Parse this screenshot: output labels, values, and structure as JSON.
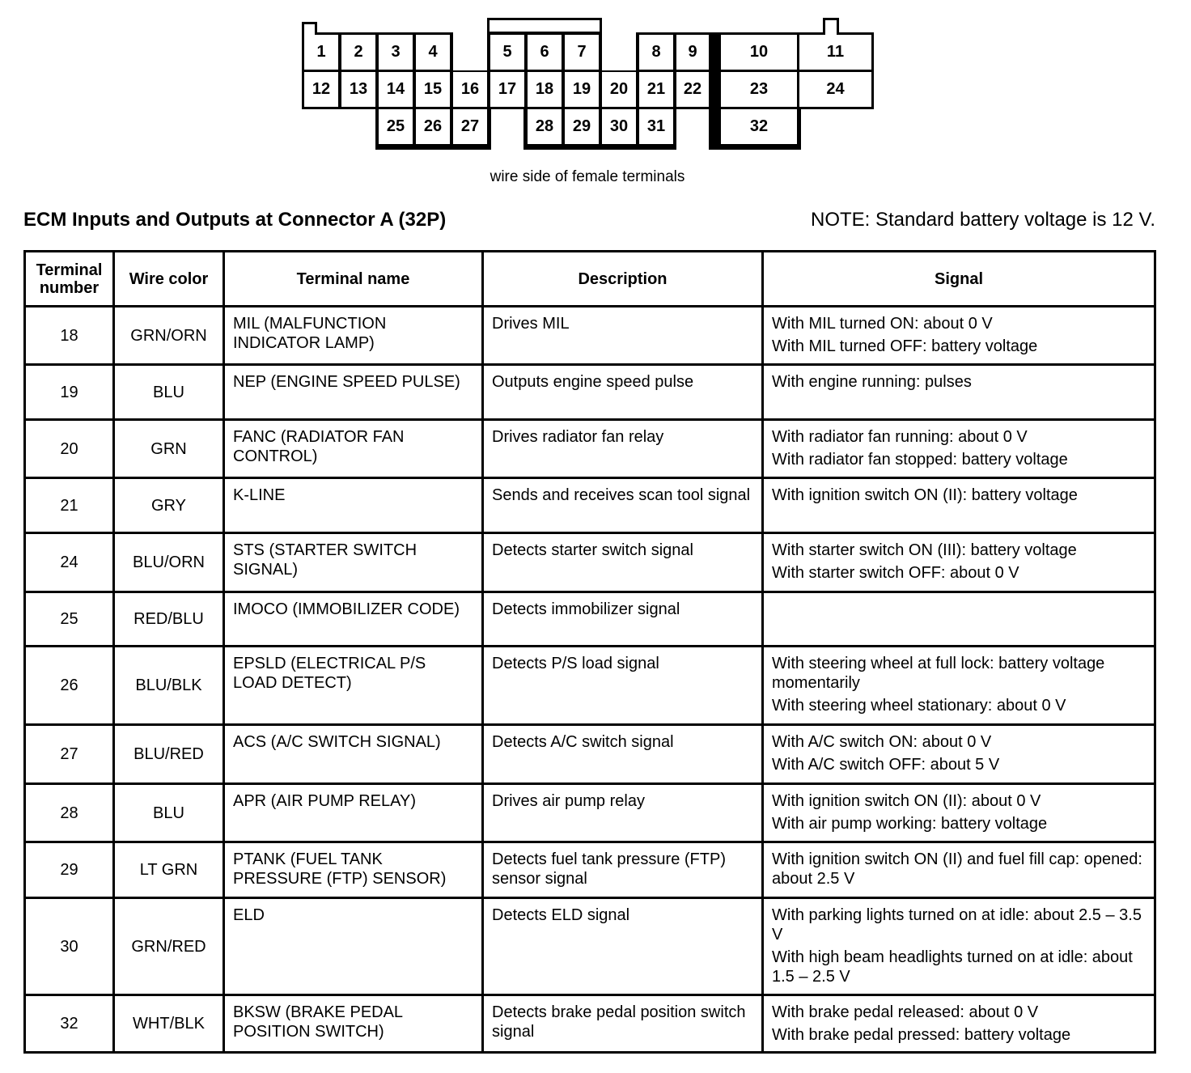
{
  "connector": {
    "cells": [
      "1",
      "2",
      "3",
      "4",
      "5",
      "6",
      "7",
      "8",
      "9",
      "10",
      "11",
      "12",
      "13",
      "14",
      "15",
      "16",
      "17",
      "18",
      "19",
      "20",
      "21",
      "22",
      "23",
      "24",
      "25",
      "26",
      "27",
      "28",
      "29",
      "30",
      "31",
      "32"
    ],
    "caption": "wire side of female terminals"
  },
  "title": "ECM Inputs and Outputs at Connector A (32P)",
  "note": "NOTE: Standard battery voltage is 12 V.",
  "table": {
    "headers": [
      "Terminal number",
      "Wire color",
      "Terminal name",
      "Description",
      "Signal"
    ],
    "rows": [
      {
        "terminal": "18",
        "wire": "GRN/ORN",
        "name": "MIL (MALFUNCTION INDICATOR LAMP)",
        "description": "Drives MIL",
        "signal": [
          "With MIL turned ON: about 0 V",
          "With MIL turned OFF: battery voltage"
        ]
      },
      {
        "terminal": "19",
        "wire": "BLU",
        "name": "NEP (ENGINE SPEED PULSE)",
        "description": "Outputs engine speed pulse",
        "signal": [
          "With engine running: pulses"
        ]
      },
      {
        "terminal": "20",
        "wire": "GRN",
        "name": "FANC (RADIATOR FAN CONTROL)",
        "description": "Drives radiator fan relay",
        "signal": [
          "With radiator fan running: about 0 V",
          "With radiator fan stopped: battery voltage"
        ]
      },
      {
        "terminal": "21",
        "wire": "GRY",
        "name": "K-LINE",
        "description": "Sends and receives scan tool signal",
        "signal": [
          "With ignition switch ON (II): battery voltage"
        ]
      },
      {
        "terminal": "24",
        "wire": "BLU/ORN",
        "name": "STS (STARTER SWITCH SIGNAL)",
        "description": "Detects starter switch signal",
        "signal": [
          "With starter switch ON (III): battery voltage",
          "With starter switch OFF: about 0 V"
        ]
      },
      {
        "terminal": "25",
        "wire": "RED/BLU",
        "name": "IMOCO (IMMOBILIZER CODE)",
        "description": "Detects immobilizer signal",
        "signal": []
      },
      {
        "terminal": "26",
        "wire": "BLU/BLK",
        "name": "EPSLD (ELECTRICAL P/S LOAD DETECT)",
        "description": "Detects P/S load signal",
        "signal": [
          "With steering wheel at full lock: battery voltage momentarily",
          "With steering wheel stationary: about 0 V"
        ]
      },
      {
        "terminal": "27",
        "wire": "BLU/RED",
        "name": "ACS (A/C SWITCH SIGNAL)",
        "description": "Detects A/C switch signal",
        "signal": [
          "With A/C switch ON: about 0 V",
          "With A/C switch OFF: about 5 V"
        ]
      },
      {
        "terminal": "28",
        "wire": "BLU",
        "name": "APR (AIR PUMP RELAY)",
        "description": "Drives air pump relay",
        "signal": [
          "With ignition switch ON (II): about 0 V",
          "With air pump working: battery voltage"
        ]
      },
      {
        "terminal": "29",
        "wire": "LT GRN",
        "name": "PTANK (FUEL TANK PRESSURE (FTP) SENSOR)",
        "description": "Detects fuel tank pressure (FTP) sensor signal",
        "signal": [
          "With ignition switch ON (II) and fuel fill cap: opened: about 2.5 V"
        ]
      },
      {
        "terminal": "30",
        "wire": "GRN/RED",
        "name": "ELD",
        "description": "Detects ELD signal",
        "signal": [
          "With parking lights turned on at idle: about 2.5 – 3.5 V",
          "With high beam headlights turned on at idle: about 1.5 – 2.5 V"
        ]
      },
      {
        "terminal": "32",
        "wire": "WHT/BLK",
        "name": "BKSW (BRAKE PEDAL POSITION SWITCH)",
        "description": "Detects brake pedal position switch signal",
        "signal": [
          "With brake pedal released: about 0 V",
          "With brake pedal pressed: battery voltage"
        ]
      }
    ]
  }
}
